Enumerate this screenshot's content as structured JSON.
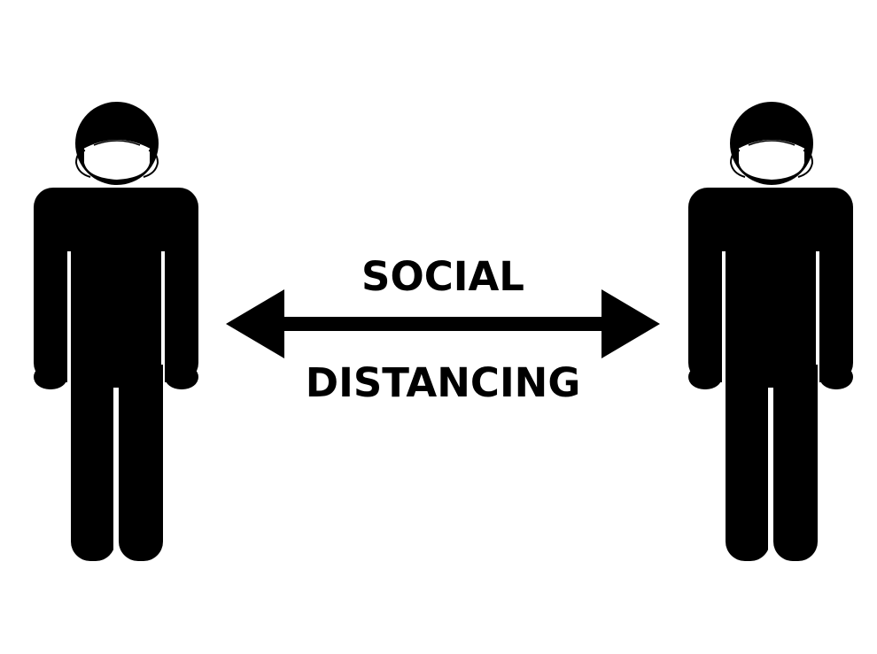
{
  "sign": {
    "line_1": "SOCIAL",
    "line_2": "DISTANCING"
  },
  "colors": {
    "ink": "#000000",
    "background": "#ffffff"
  },
  "icons": {
    "left_person": "masked-person-icon",
    "right_person": "masked-person-icon",
    "arrow": "double-headed-arrow-icon"
  }
}
